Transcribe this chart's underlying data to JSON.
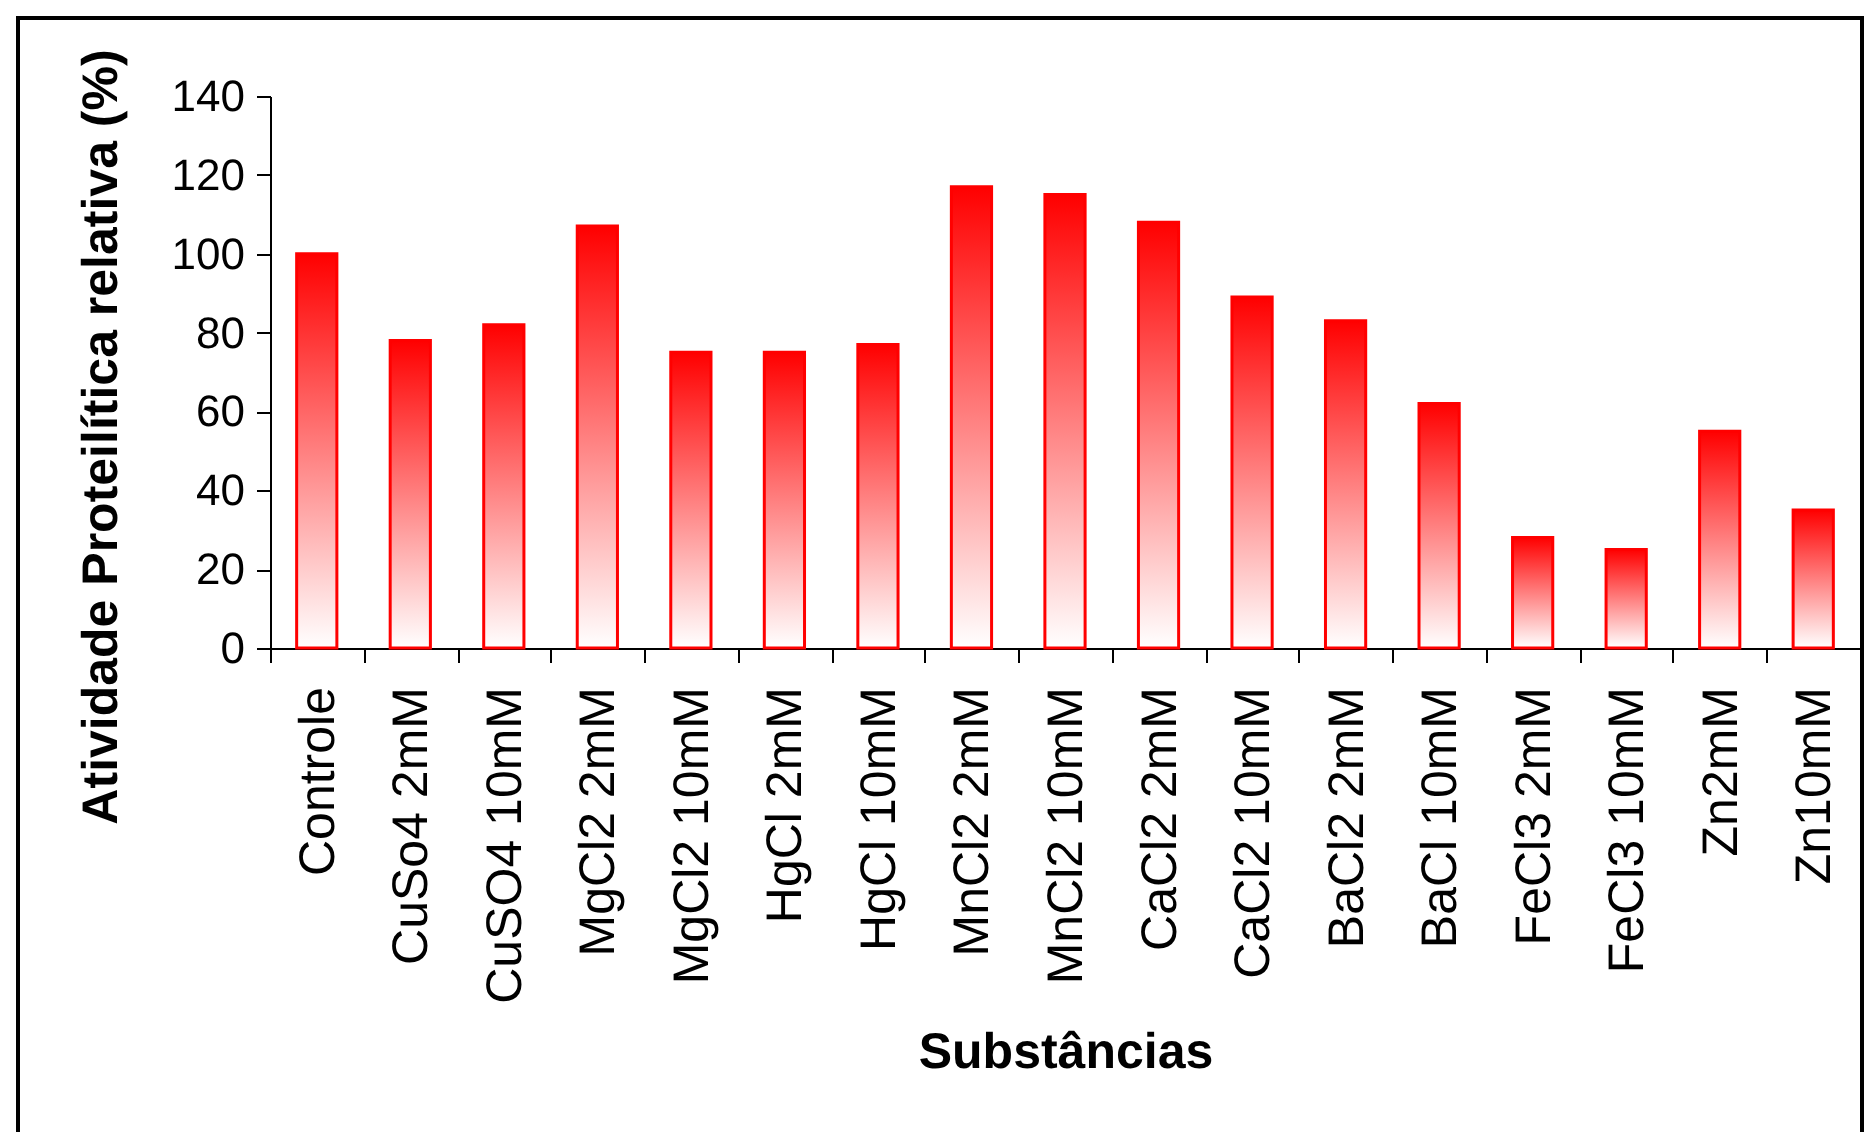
{
  "chart_data": {
    "type": "bar",
    "xlabel": "Substâncias",
    "ylabel": "Atividade Proteilítica relativa (%)",
    "categories": [
      "Controle",
      "CuSo4 2mM",
      "CuSO4 10mM",
      "MgCl2 2mM",
      "MgCl2 10mM",
      "HgCl 2mM",
      "HgCl 10mM",
      "MnCl2 2mM",
      "MnCl2 10mM",
      "CaCl2 2mM",
      "CaCl2 10mM",
      "BaCl2 2mM",
      "BaCl 10mM",
      "FeCl3 2mM",
      "FeCl3 10mM",
      "Zn2mM",
      "Zn10mM"
    ],
    "values": [
      100,
      78,
      82,
      107,
      75,
      75,
      77,
      117,
      115,
      108,
      89,
      83,
      62,
      28,
      25,
      55,
      35
    ],
    "color": "#ff0000",
    "ylim": [
      0,
      140
    ],
    "yticks": [
      0,
      20,
      40,
      60,
      80,
      100,
      120,
      140
    ],
    "grid": false
  }
}
